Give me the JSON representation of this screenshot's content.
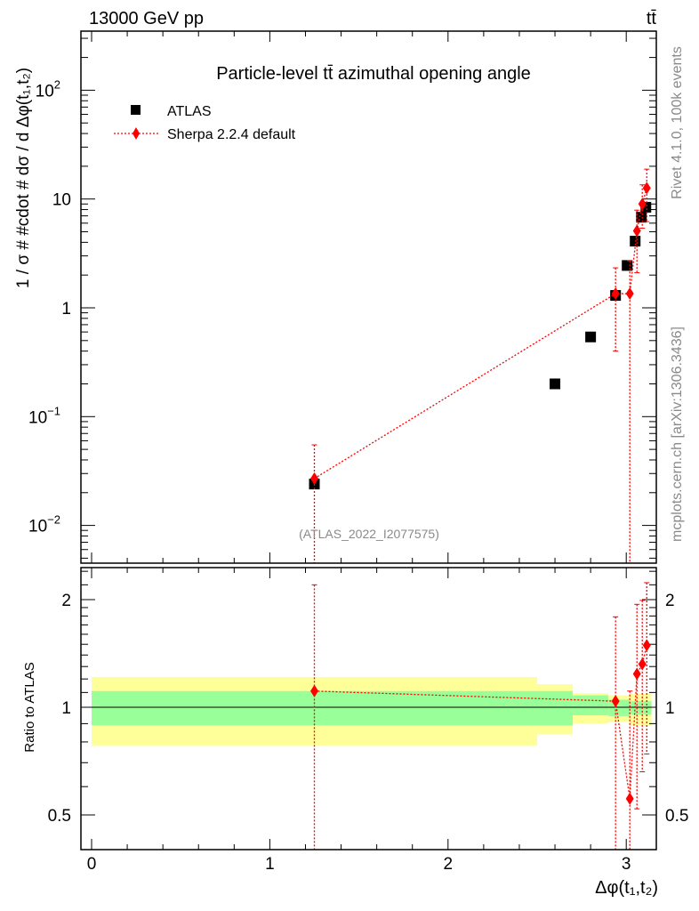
{
  "header": {
    "energy_label": "13000 GeV pp",
    "process_label": "tt̄"
  },
  "side_text": {
    "rivet": "Rivet 4.1.0,  100k events",
    "mcplots": "mcplots.cern.ch [arXiv:1306.3436]"
  },
  "watermark": "(ATLAS_2022_I2077575)",
  "colors": {
    "data": "#000000",
    "mc": "#ff0000",
    "band_outer": "#ffff99",
    "band_inner": "#99ff99",
    "side_text": "#8a8a8a"
  },
  "chart_data": [
    {
      "type": "scatter",
      "title": "Particle-level tt̄ azimuthal opening angle",
      "xlabel": "Δφ(t₁,t₂)",
      "ylabel": "1 / σ # #cdot # dσ / d Δφ(t₁,t₂)",
      "yscale": "log",
      "xlim": [
        -0.06,
        3.17
      ],
      "ylim": [
        0.0045,
        345
      ],
      "legend_position": "top-left",
      "ytick_labels": [
        {
          "v": 0.01,
          "base": "10",
          "exp": "−2"
        },
        {
          "v": 0.1,
          "base": "10",
          "exp": "−1"
        },
        {
          "v": 1,
          "base": "1",
          "exp": ""
        },
        {
          "v": 10,
          "base": "10",
          "exp": ""
        },
        {
          "v": 100,
          "base": "10",
          "exp": "2"
        }
      ],
      "series": [
        {
          "name": "ATLAS",
          "marker": "square",
          "x": [
            1.25,
            2.6,
            2.8,
            2.94,
            3.005,
            3.05,
            3.085,
            3.11
          ],
          "y": [
            0.024,
            0.2,
            0.54,
            1.3,
            2.45,
            4.1,
            6.8,
            8.4
          ]
        },
        {
          "name": "Sherpa 2.2.4 default",
          "marker": "diamond",
          "line": "dotted",
          "x": [
            1.25,
            2.94,
            3.02,
            3.06,
            3.09,
            3.115
          ],
          "y": [
            0.027,
            1.35,
            1.35,
            5.1,
            9.0,
            12.6
          ],
          "y_err_low": [
            0.0,
            0.4,
            0.0,
            2.1,
            5.4,
            6.2
          ],
          "y_err_high": [
            0.055,
            2.33,
            2.7,
            7.9,
            13.5,
            18.8
          ]
        }
      ]
    },
    {
      "type": "scatter",
      "ylabel": "Ratio to ATLAS",
      "xlabel": "Δφ(t₁,t₂)",
      "yscale": "log",
      "xlim": [
        -0.06,
        3.17
      ],
      "ylim": [
        0.4,
        2.46
      ],
      "xtick_labels": [
        "0",
        "1",
        "2",
        "3"
      ],
      "ytick_labels": [
        {
          "v": 0.5,
          "label": "0.5"
        },
        {
          "v": 1,
          "label": "1"
        },
        {
          "v": 2,
          "label": "2"
        }
      ],
      "uncertainty_bands": {
        "bin_edges": [
          0,
          2.5,
          2.7,
          2.9,
          3.02,
          3.1416
        ],
        "outer_low": [
          0.78,
          0.84,
          0.9,
          0.91,
          0.89
        ],
        "outer_high": [
          1.215,
          1.16,
          1.095,
          1.08,
          1.09
        ],
        "inner_low": [
          0.89,
          0.89,
          0.95,
          0.945,
          0.955
        ],
        "inner_high": [
          1.11,
          1.11,
          1.08,
          1.05,
          1.04
        ]
      },
      "series": [
        {
          "name": "Sherpa 2.2.4 default / ATLAS",
          "x": [
            1.25,
            2.94,
            3.02,
            3.06,
            3.09,
            3.115
          ],
          "y": [
            1.11,
            1.04,
            0.555,
            1.24,
            1.32,
            1.49
          ],
          "y_err_low": [
            0.0,
            0.0,
            0.0,
            0.52,
            0.66,
            0.74
          ],
          "y_err_high": [
            2.2,
            1.79,
            1.11,
            1.94,
            1.99,
            2.23
          ]
        }
      ]
    }
  ]
}
